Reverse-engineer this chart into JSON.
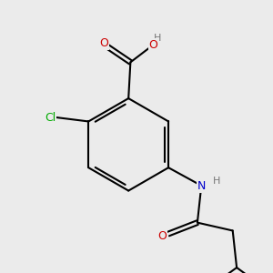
{
  "bg_color": "#ebebeb",
  "atom_colors": {
    "C": "#000000",
    "O": "#cc0000",
    "N": "#0000cc",
    "Cl": "#00aa00",
    "H": "#777777"
  },
  "bond_color": "#000000",
  "bond_width": 1.5
}
